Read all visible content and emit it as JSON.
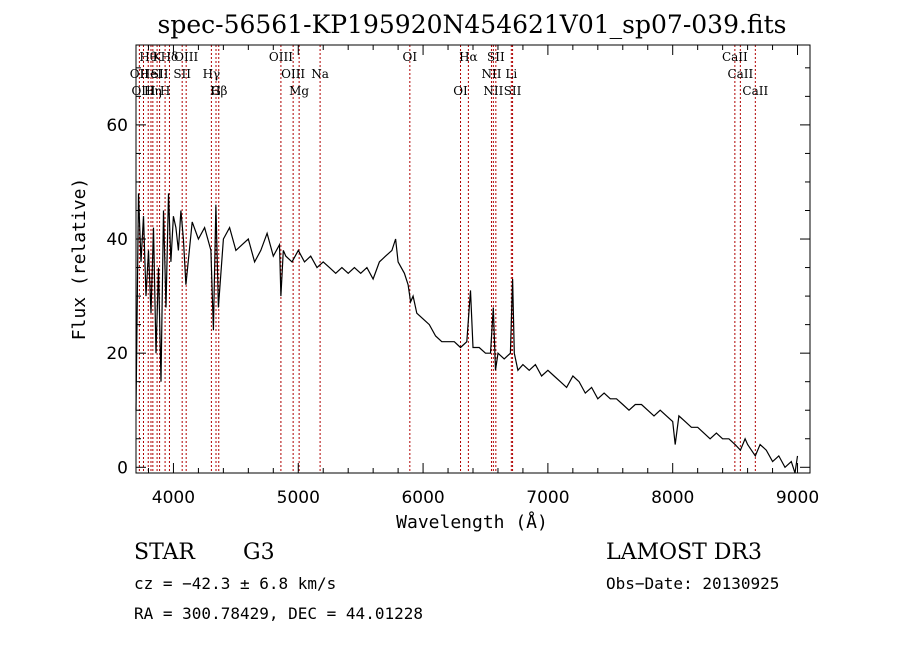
{
  "chart_data": {
    "type": "line",
    "title": "spec-56561-KP195920N454621V01_sp07-039.fits",
    "xlabel": "Wavelength (Å)",
    "ylabel": "Flux (relative)",
    "xlim": [
      3700,
      9100
    ],
    "ylim": [
      -1,
      74
    ],
    "x_ticks": [
      4000,
      5000,
      6000,
      7000,
      8000,
      9000
    ],
    "y_ticks": [
      0,
      20,
      40,
      60
    ],
    "series": [
      {
        "x": [
          3700,
          3720,
          3740,
          3760,
          3780,
          3800,
          3820,
          3840,
          3860,
          3880,
          3900,
          3920,
          3940,
          3960,
          3980,
          4000,
          4020,
          4040,
          4060,
          4080,
          4100,
          4150,
          4200,
          4250,
          4300,
          4320,
          4340,
          4360,
          4400,
          4450,
          4500,
          4550,
          4600,
          4650,
          4700,
          4750,
          4800,
          4850,
          4861,
          4880,
          4900,
          4950,
          5000,
          5050,
          5100,
          5150,
          5200,
          5250,
          5300,
          5350,
          5400,
          5450,
          5500,
          5550,
          5600,
          5650,
          5700,
          5750,
          5780,
          5800,
          5850,
          5880,
          5900,
          5920,
          5950,
          6000,
          6050,
          6100,
          6150,
          6200,
          6250,
          6300,
          6350,
          6380,
          6400,
          6450,
          6500,
          6540,
          6563,
          6580,
          6600,
          6650,
          6700,
          6717,
          6731,
          6760,
          6800,
          6850,
          6900,
          6950,
          7000,
          7050,
          7100,
          7150,
          7200,
          7250,
          7300,
          7350,
          7400,
          7450,
          7500,
          7550,
          7600,
          7650,
          7700,
          7750,
          7800,
          7850,
          7900,
          7950,
          8000,
          8020,
          8050,
          8100,
          8150,
          8200,
          8250,
          8300,
          8350,
          8400,
          8450,
          8500,
          8542,
          8580,
          8600,
          8662,
          8700,
          8750,
          8800,
          8850,
          8900,
          8950,
          8980,
          9000
        ],
        "y": [
          10,
          48,
          36,
          44,
          30,
          38,
          27,
          42,
          20,
          35,
          15,
          45,
          28,
          48,
          36,
          44,
          42,
          38,
          45,
          40,
          32,
          43,
          40,
          42,
          38,
          24,
          46,
          28,
          40,
          42,
          38,
          39,
          40,
          36,
          38,
          41,
          37,
          39,
          30,
          38,
          37,
          36,
          38,
          36,
          37,
          35,
          36,
          35,
          34,
          35,
          34,
          35,
          34,
          35,
          33,
          36,
          37,
          38,
          40,
          36,
          34,
          32,
          29,
          30,
          27,
          26,
          25,
          23,
          22,
          22,
          22,
          21,
          22,
          31,
          21,
          21,
          20,
          20,
          28,
          17,
          20,
          19,
          20,
          33,
          20,
          17,
          18,
          17,
          18,
          16,
          17,
          16,
          15,
          14,
          16,
          15,
          13,
          14,
          12,
          13,
          12,
          12,
          11,
          10,
          11,
          11,
          10,
          9,
          10,
          9,
          8,
          4,
          9,
          8,
          7,
          7,
          6,
          5,
          6,
          5,
          5,
          4,
          3,
          5,
          4,
          2,
          4,
          3,
          1,
          2,
          0,
          1,
          -1,
          2
        ]
      }
    ],
    "lines": [
      {
        "label": "OII",
        "wavelength": 3727,
        "row": 1
      },
      {
        "label": "OIII",
        "wavelength": 3760,
        "row": 2
      },
      {
        "label": "Hθ",
        "wavelength": 3798,
        "row": 0
      },
      {
        "label": "HeI",
        "wavelength": 3820,
        "row": 1
      },
      {
        "label": "Hη",
        "wavelength": 3835,
        "row": 2
      },
      {
        "label": "K",
        "wavelength": 3869,
        "row": 0
      },
      {
        "label": "SII",
        "wavelength": 3889,
        "row": 1
      },
      {
        "label": "H",
        "wavelength": 3933,
        "row": 2
      },
      {
        "label": "Hδ",
        "wavelength": 3968,
        "row": 0
      },
      {
        "label": "SII",
        "wavelength": 4070,
        "row": 1
      },
      {
        "label": "OIII",
        "wavelength": 4102,
        "row": 0
      },
      {
        "label": "Hγ",
        "wavelength": 4304,
        "row": 1
      },
      {
        "label": "G",
        "wavelength": 4341,
        "row": 2
      },
      {
        "label": "Hβ",
        "wavelength": 4363,
        "row": 2
      },
      {
        "label": "OIII",
        "wavelength": 4861,
        "row": 0
      },
      {
        "label": "OIII",
        "wavelength": 4959,
        "row": 1
      },
      {
        "label": "Mg",
        "wavelength": 5007,
        "row": 2
      },
      {
        "label": "Na",
        "wavelength": 5175,
        "row": 1
      },
      {
        "label": "OI",
        "wavelength": 5894,
        "row": 0
      },
      {
        "label": "OI",
        "wavelength": 6300,
        "row": 2
      },
      {
        "label": "Hα",
        "wavelength": 6363,
        "row": 0
      },
      {
        "label": "NII",
        "wavelength": 6548,
        "row": 1
      },
      {
        "label": "NII",
        "wavelength": 6563,
        "row": 2
      },
      {
        "label": "SII",
        "wavelength": 6583,
        "row": 0
      },
      {
        "label": "Li",
        "wavelength": 6707,
        "row": 1
      },
      {
        "label": "SII",
        "wavelength": 6717,
        "row": 2
      },
      {
        "label": "CaII",
        "wavelength": 8498,
        "row": 0
      },
      {
        "label": "CaII",
        "wavelength": 8542,
        "row": 1
      },
      {
        "label": "CaII",
        "wavelength": 8662,
        "row": 2
      }
    ]
  },
  "info": {
    "object_class": "STAR",
    "subclass": "G3",
    "survey": "LAMOST DR3",
    "cz": "cz = −42.3 ± 6.8 km/s",
    "obs_date": "Obs−Date: 20130925",
    "coords": "RA = 300.78429, DEC =  44.01228"
  }
}
